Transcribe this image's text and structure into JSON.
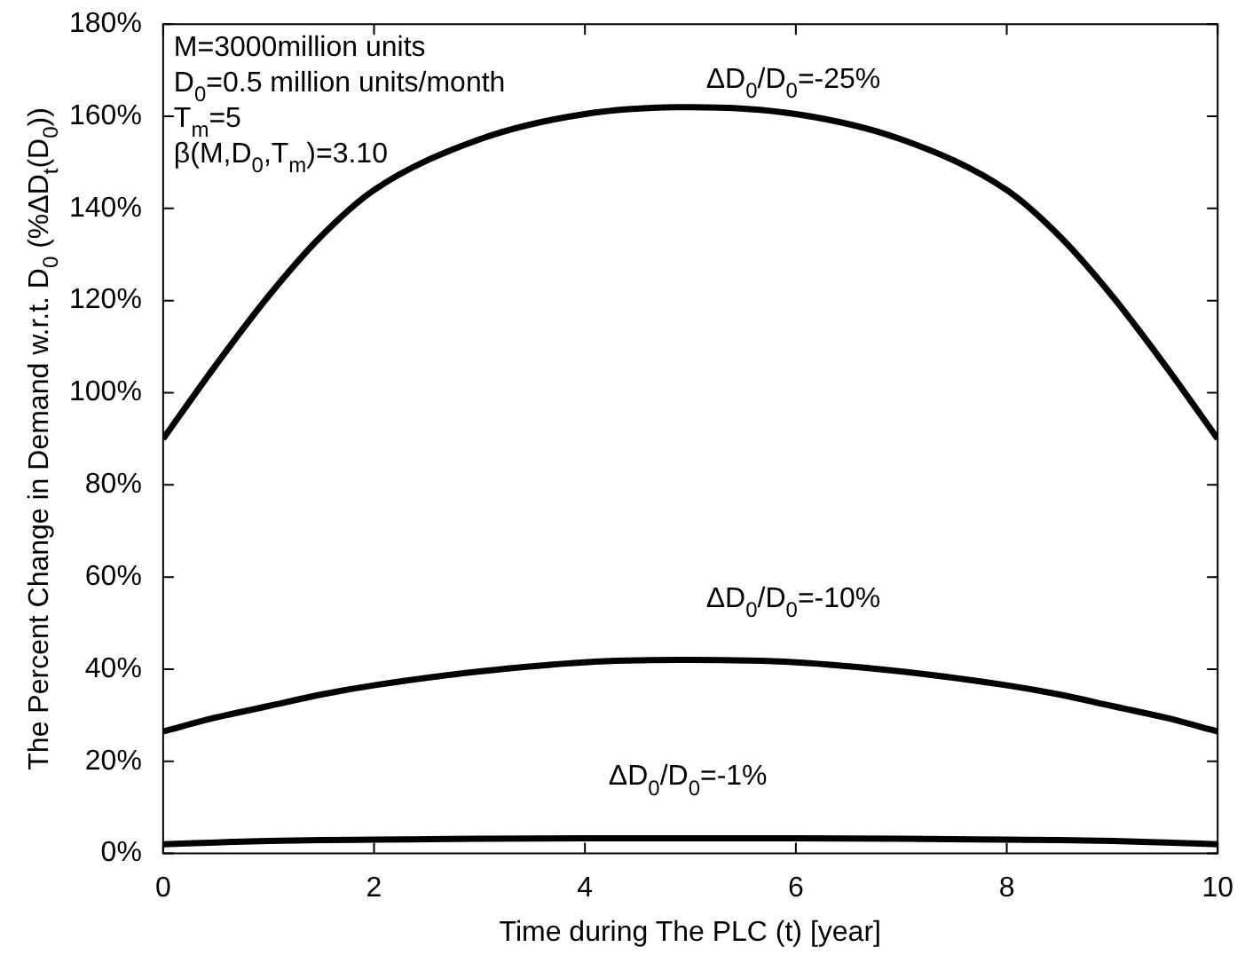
{
  "chart_data": {
    "type": "line",
    "xlabel": "Time during The PLC (t) [year]",
    "ylabel": "The Percent Change in Demand w.r.t. D$_{0}$ (%ΔD$_{t}$(D$_{0}$))",
    "x": [
      0,
      0.5,
      1,
      1.5,
      2,
      3,
      4,
      5,
      6,
      7,
      8,
      8.5,
      9,
      9.5,
      10
    ],
    "series": [
      {
        "name": "ΔD$_{0}$/D$_{0}$=-25%",
        "color": "#000000",
        "values": [
          90,
          106,
          121,
          134,
          144,
          155,
          160.5,
          162,
          160.5,
          155,
          144,
          134,
          121,
          106,
          90
        ]
      },
      {
        "name": "ΔD$_{0}$/D$_{0}$=-10%",
        "color": "#000000",
        "values": [
          26.5,
          29.5,
          32,
          34.5,
          36.5,
          39.5,
          41.5,
          42,
          41.5,
          39.5,
          36.5,
          34.5,
          32,
          29.5,
          26.5
        ]
      },
      {
        "name": "ΔD$_{0}$/D$_{0}$=-1%",
        "color": "#000000",
        "values": [
          2,
          2.4,
          2.7,
          2.9,
          3,
          3.2,
          3.3,
          3.3,
          3.3,
          3.2,
          3,
          2.9,
          2.7,
          2.4,
          2
        ]
      }
    ],
    "xlim": [
      0,
      10
    ],
    "xticks": [
      0,
      2,
      4,
      6,
      8,
      10
    ],
    "ylim": [
      0,
      180
    ],
    "yticks": [
      {
        "value": 0,
        "label": "0%"
      },
      {
        "value": 20,
        "label": "20%"
      },
      {
        "value": 40,
        "label": "40%"
      },
      {
        "value": 60,
        "label": "60%"
      },
      {
        "value": 80,
        "label": "80%"
      },
      {
        "value": 100,
        "label": "100%"
      },
      {
        "value": 120,
        "label": "120%"
      },
      {
        "value": 140,
        "label": "140%"
      },
      {
        "value": 160,
        "label": "160%"
      },
      {
        "value": 180,
        "label": "180%"
      }
    ],
    "annotations": [
      "M=3000million units",
      "D$_{0}$=0.5 million units/month",
      "T$_{m}$=5",
      "β(M,D$_{0}$,T$_{m}$)=3.10"
    ],
    "grid": false,
    "marker": "none",
    "line_style": "solid"
  }
}
